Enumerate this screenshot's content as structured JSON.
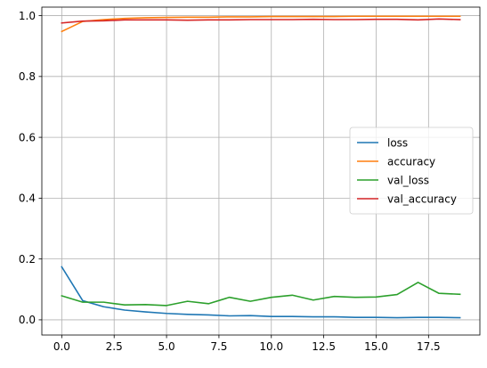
{
  "chart_data": {
    "type": "line",
    "title": "",
    "xlabel": "",
    "ylabel": "",
    "xlim": [
      -0.95,
      19.95
    ],
    "ylim": [
      -0.05,
      1.028
    ],
    "x_ticks": [
      0.0,
      2.5,
      5.0,
      7.5,
      10.0,
      12.5,
      15.0,
      17.5
    ],
    "x_tick_labels": [
      "0.0",
      "2.5",
      "5.0",
      "7.5",
      "10.0",
      "12.5",
      "15.0",
      "17.5"
    ],
    "y_ticks": [
      0.0,
      0.2,
      0.4,
      0.6,
      0.8,
      1.0
    ],
    "y_tick_labels": [
      "0.0",
      "0.2",
      "0.4",
      "0.6",
      "0.8",
      "1.0"
    ],
    "grid": true,
    "legend_position": "center-right",
    "x": [
      0,
      1,
      2,
      3,
      4,
      5,
      6,
      7,
      8,
      9,
      10,
      11,
      12,
      13,
      14,
      15,
      16,
      17,
      18,
      19
    ],
    "series": [
      {
        "name": "loss",
        "color": "#1f77b4",
        "values": [
          0.174,
          0.063,
          0.043,
          0.032,
          0.026,
          0.021,
          0.018,
          0.016,
          0.013,
          0.014,
          0.011,
          0.011,
          0.01,
          0.01,
          0.008,
          0.008,
          0.007,
          0.008,
          0.008,
          0.007
        ]
      },
      {
        "name": "accuracy",
        "color": "#ff7f0e",
        "values": [
          0.948,
          0.981,
          0.987,
          0.991,
          0.993,
          0.994,
          0.995,
          0.995,
          0.996,
          0.996,
          0.997,
          0.997,
          0.997,
          0.997,
          0.998,
          0.998,
          0.998,
          0.998,
          0.998,
          0.998
        ]
      },
      {
        "name": "val_loss",
        "color": "#2ca02c",
        "values": [
          0.079,
          0.058,
          0.058,
          0.049,
          0.05,
          0.047,
          0.061,
          0.053,
          0.074,
          0.061,
          0.074,
          0.081,
          0.065,
          0.077,
          0.074,
          0.075,
          0.083,
          0.123,
          0.087,
          0.084
        ]
      },
      {
        "name": "val_accuracy",
        "color": "#d62728",
        "values": [
          0.976,
          0.982,
          0.983,
          0.986,
          0.986,
          0.986,
          0.985,
          0.986,
          0.986,
          0.987,
          0.987,
          0.987,
          0.988,
          0.987,
          0.987,
          0.988,
          0.988,
          0.986,
          0.989,
          0.987
        ]
      }
    ]
  }
}
